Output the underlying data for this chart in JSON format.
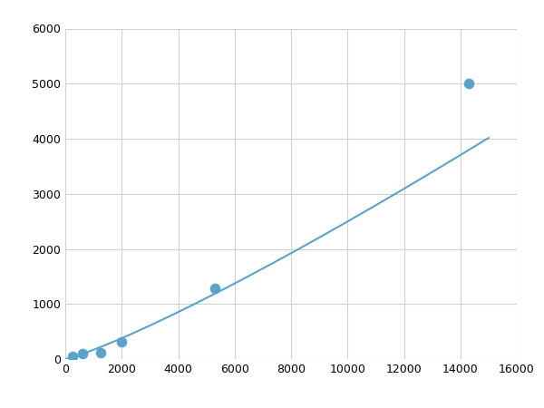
{
  "x_data": [
    250,
    625,
    1250,
    2000,
    5300,
    14300
  ],
  "y_data": [
    50,
    100,
    120,
    310,
    1280,
    5000
  ],
  "line_color": "#5ba3c9",
  "marker_color": "#5ba3c9",
  "marker_size": 6,
  "linewidth": 1.5,
  "xlim": [
    0,
    16000
  ],
  "ylim": [
    0,
    6000
  ],
  "xticks": [
    0,
    2000,
    4000,
    6000,
    8000,
    10000,
    12000,
    14000,
    16000
  ],
  "yticks": [
    0,
    1000,
    2000,
    3000,
    4000,
    5000,
    6000
  ],
  "grid_color": "#d0d0d0",
  "background_color": "#ffffff",
  "figure_facecolor": "#ffffff"
}
